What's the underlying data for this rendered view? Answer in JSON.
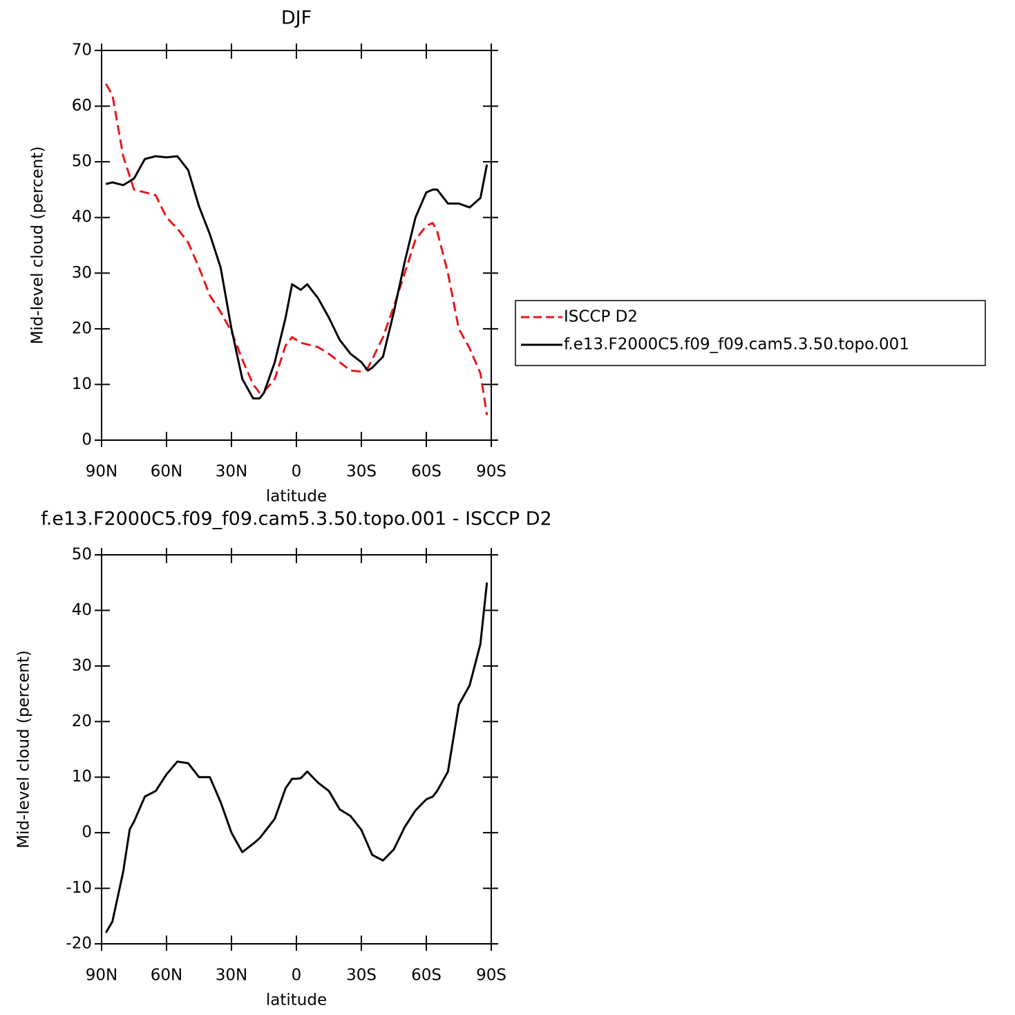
{
  "chart_data": [
    {
      "type": "line",
      "title": "DJF",
      "xlabel": "latitude",
      "ylabel": "Mid-level cloud (percent)",
      "x": [
        88,
        85,
        80,
        75,
        70,
        65,
        60,
        55,
        50,
        45,
        40,
        35,
        30,
        25,
        20,
        17,
        15,
        10,
        5,
        2,
        0,
        -2,
        -5,
        -10,
        -15,
        -20,
        -25,
        -30,
        -33,
        -35,
        -40,
        -45,
        -50,
        -55,
        -60,
        -63,
        -65,
        -70,
        -75,
        -80,
        -85,
        -88
      ],
      "series": [
        {
          "name": "ISCCP D2",
          "color": "#e8161b",
          "line_style": "dashed",
          "values": [
            64,
            62,
            51,
            45,
            44.5,
            44,
            40,
            38,
            35.5,
            31,
            26,
            23,
            19.5,
            14.5,
            10,
            8.5,
            8.7,
            11,
            17,
            18.5,
            18,
            17.5,
            17.2,
            16.7,
            15.5,
            14,
            12.5,
            12.3,
            13,
            14.5,
            18.5,
            24,
            30,
            36,
            38.5,
            39,
            37.5,
            30,
            20,
            16.5,
            12,
            4.5
          ]
        },
        {
          "name": "f.e13.F2000C5.f09_f09.cam5.3.50.topo.001",
          "color": "#000000",
          "line_style": "solid",
          "values": [
            46,
            46.3,
            45.8,
            47,
            50.5,
            51,
            50.8,
            51,
            48.5,
            42,
            37,
            31,
            20,
            11,
            7.5,
            7.5,
            8.5,
            14,
            22,
            28,
            27.5,
            27,
            28,
            25.5,
            22,
            18,
            15.5,
            14,
            12.5,
            13,
            15,
            23,
            32,
            40,
            44.5,
            45,
            45,
            42.5,
            42.5,
            41.8,
            43.5,
            49.5
          ]
        }
      ],
      "xlim": [
        90,
        -90
      ],
      "xticks": [
        {
          "value": 90,
          "label": "90N"
        },
        {
          "value": 60,
          "label": "60N"
        },
        {
          "value": 30,
          "label": "30N"
        },
        0,
        {
          "value": -30,
          "label": "30S"
        },
        {
          "value": -60,
          "label": "60S"
        },
        {
          "value": -90,
          "label": "90S"
        }
      ],
      "ylim": [
        0,
        70
      ],
      "yticks": [
        0,
        10,
        20,
        30,
        40,
        50,
        60,
        70
      ],
      "legend": "right"
    },
    {
      "type": "line",
      "title": "f.e13.F2000C5.f09_f09.cam5.3.50.topo.001 - ISCCP D2",
      "xlabel": "latitude",
      "ylabel": "Mid-level cloud (percent)",
      "x": [
        88,
        85,
        80,
        77,
        75,
        70,
        65,
        60,
        55,
        50,
        45,
        40,
        35,
        30,
        25,
        20,
        17,
        15,
        10,
        5,
        2,
        0,
        -2,
        -5,
        -10,
        -15,
        -20,
        -25,
        -30,
        -33,
        -35,
        -40,
        -45,
        -50,
        -55,
        -60,
        -63,
        -65,
        -70,
        -75,
        -80,
        -85,
        -88
      ],
      "series": [
        {
          "color": "#000000",
          "line_style": "solid",
          "values": [
            -18,
            -16,
            -7,
            0.6,
            2,
            6.5,
            7.5,
            10.5,
            12.8,
            12.5,
            10,
            10,
            5.5,
            0,
            -3.5,
            -2,
            -1,
            0,
            2.5,
            8,
            9.7,
            9.7,
            9.8,
            11,
            9,
            7.5,
            4.2,
            3,
            0.5,
            -2.2,
            -4,
            -5,
            -3,
            1,
            4,
            6,
            6.5,
            7.5,
            11,
            23,
            26.5,
            34,
            45
          ]
        }
      ],
      "xlim": [
        90,
        -90
      ],
      "xticks": [
        {
          "value": 90,
          "label": "90N"
        },
        {
          "value": 60,
          "label": "60N"
        },
        {
          "value": 30,
          "label": "30N"
        },
        0,
        {
          "value": -30,
          "label": "30S"
        },
        {
          "value": -60,
          "label": "60S"
        },
        {
          "value": -90,
          "label": "90S"
        }
      ],
      "ylim": [
        -20,
        50
      ],
      "yticks": [
        -20,
        -10,
        0,
        10,
        20,
        30,
        40,
        50
      ]
    }
  ]
}
